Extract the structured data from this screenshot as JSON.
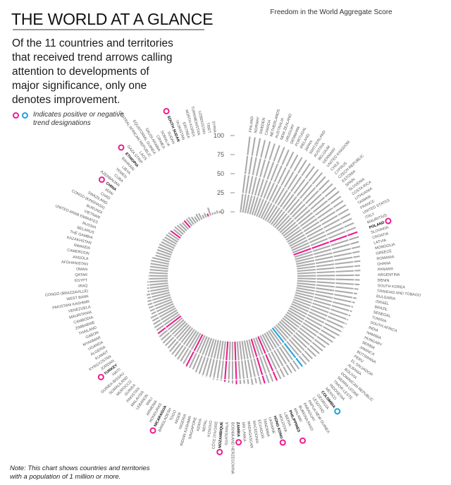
{
  "header": {
    "title": "THE WORLD AT A GLANCE",
    "subtitle": "Of the 11 countries and territories that received trend arrows calling attention to developments of major significance, only one denotes improvement.",
    "legend_text": "Indicates positive or negative trend designations",
    "note": "Note: This chart shows countries and territories with a population of 1 million or more."
  },
  "colors": {
    "bar": "#ababab",
    "negative": "#ec1c8c",
    "positive": "#1ba4e0",
    "gridline": "#ffffff"
  },
  "chart_data": {
    "type": "bar",
    "layout": "radial",
    "title": "THE WORLD AT A GLANCE",
    "ylabel": "Freedom in the World Aggregate Score",
    "ylim": [
      0,
      100
    ],
    "yticks": [
      "0",
      "25",
      "50",
      "75",
      "100"
    ],
    "grid": true,
    "legend": [
      {
        "label": "Indicates positive or negative trend designations",
        "markers": [
          "negative",
          "positive"
        ]
      }
    ],
    "series": [
      {
        "name": "Aggregate Score",
        "categories": [
          {
            "name": "FINLAND",
            "value": 100
          },
          {
            "name": "NORWAY",
            "value": 100
          },
          {
            "name": "SWEDEN",
            "value": 100
          },
          {
            "name": "CANADA",
            "value": 99
          },
          {
            "name": "NETHERLANDS",
            "value": 99
          },
          {
            "name": "AUSTRALIA",
            "value": 98
          },
          {
            "name": "NEW ZEALAND",
            "value": 98
          },
          {
            "name": "URUGUAY",
            "value": 98
          },
          {
            "name": "DENMARK",
            "value": 97
          },
          {
            "name": "PORTUGAL",
            "value": 97
          },
          {
            "name": "IRELAND",
            "value": 96
          },
          {
            "name": "JAPAN",
            "value": 96
          },
          {
            "name": "SWITZERLAND",
            "value": 96
          },
          {
            "name": "AUSTRIA",
            "value": 95
          },
          {
            "name": "BELGIUM",
            "value": 95
          },
          {
            "name": "GERMANY",
            "value": 95
          },
          {
            "name": "UNITED KINGDOM",
            "value": 95
          },
          {
            "name": "CHILE",
            "value": 94
          },
          {
            "name": "CYPRUS",
            "value": 94
          },
          {
            "name": "CZECH REPUBLIC",
            "value": 94
          },
          {
            "name": "ESTONIA",
            "value": 94
          },
          {
            "name": "SPAIN",
            "value": 94
          },
          {
            "name": "SLOVENIA",
            "value": 92
          },
          {
            "name": "COSTA RICA",
            "value": 91
          },
          {
            "name": "LITHUANIA",
            "value": 91
          },
          {
            "name": "TAIWAN",
            "value": 91
          },
          {
            "name": "FRANCE",
            "value": 90
          },
          {
            "name": "UNITED STATES",
            "value": 89
          },
          {
            "name": "ITALY",
            "value": 89
          },
          {
            "name": "MAURITIUS",
            "value": 89
          },
          {
            "name": "POLAND",
            "value": 89,
            "trend": "negative"
          },
          {
            "name": "SLOVAKIA",
            "value": 89
          },
          {
            "name": "CROATIA",
            "value": 87
          },
          {
            "name": "LATVIA",
            "value": 87
          },
          {
            "name": "MONGOLIA",
            "value": 85
          },
          {
            "name": "GREECE",
            "value": 84
          },
          {
            "name": "ROMANIA",
            "value": 84
          },
          {
            "name": "GHANA",
            "value": 83
          },
          {
            "name": "PANAMA",
            "value": 83
          },
          {
            "name": "ARGENTINA",
            "value": 82
          },
          {
            "name": "BENIN",
            "value": 82
          },
          {
            "name": "SOUTH KOREA",
            "value": 82
          },
          {
            "name": "TRINIDAD AND TOBAGO",
            "value": 81
          },
          {
            "name": "BULGARIA",
            "value": 80
          },
          {
            "name": "ISRAEL",
            "value": 80
          },
          {
            "name": "BRAZIL",
            "value": 79
          },
          {
            "name": "SENEGAL",
            "value": 78
          },
          {
            "name": "TUNISIA",
            "value": 78
          },
          {
            "name": "SOUTH AFRICA",
            "value": 78
          },
          {
            "name": "INDIA",
            "value": 77
          },
          {
            "name": "NAMIBIA",
            "value": 77
          },
          {
            "name": "HUNGARY",
            "value": 76
          },
          {
            "name": "SERBIA",
            "value": 76
          },
          {
            "name": "JAMAICA",
            "value": 76
          },
          {
            "name": "BOTSWANA",
            "value": 72
          },
          {
            "name": "PERU",
            "value": 72
          },
          {
            "name": "EL SALVADOR",
            "value": 70
          },
          {
            "name": "ALBANIA",
            "value": 68
          },
          {
            "name": "BOLIVIA",
            "value": 68
          },
          {
            "name": "DOMINICAN REPUBLIC",
            "value": 67
          },
          {
            "name": "SIERRA LEONE",
            "value": 66
          },
          {
            "name": "TIMOR-LESTE",
            "value": 65
          },
          {
            "name": "INDONESIA",
            "value": 65
          },
          {
            "name": "MEXICO",
            "value": 65
          },
          {
            "name": "COLOMBIA",
            "value": 64,
            "trend": "positive"
          },
          {
            "name": "GEORGIA",
            "value": 64
          },
          {
            "name": "LESOTHO",
            "value": 64
          },
          {
            "name": "PAPUA NEW GUINEA",
            "value": 63
          },
          {
            "name": "PARAGUAY",
            "value": 63
          },
          {
            "name": "BURKINA FASO",
            "value": 63
          },
          {
            "name": "MALAWI",
            "value": 63
          },
          {
            "name": "PHILIPPINES",
            "value": 63,
            "trend": "negative"
          },
          {
            "name": "LIBERIA",
            "value": 62
          },
          {
            "name": "MOLDOVA",
            "value": 62
          },
          {
            "name": "HONG KONG",
            "value": 61,
            "trend": "negative"
          },
          {
            "name": "UKRAINE",
            "value": 61
          },
          {
            "name": "TANZANIA",
            "value": 58
          },
          {
            "name": "ECUADOR",
            "value": 59
          },
          {
            "name": "MACEDONIA",
            "value": 57
          },
          {
            "name": "MADAGASCAR",
            "value": 56
          },
          {
            "name": "SRI LANKA",
            "value": 56
          },
          {
            "name": "ZAMBIA",
            "value": 56,
            "trend": "negative"
          },
          {
            "name": "BOSNIA AND HERZEGOVINA",
            "value": 55
          },
          {
            "name": "GUATEMALA",
            "value": 54
          },
          {
            "name": "MOZAMBIQUE",
            "value": 53,
            "trend": "negative"
          },
          {
            "name": "CÔTE D'IVOIRE",
            "value": 52
          },
          {
            "name": "KOSOVO",
            "value": 52
          },
          {
            "name": "NEPAL",
            "value": 52
          },
          {
            "name": "KENYA",
            "value": 51
          },
          {
            "name": "SINGAPORE",
            "value": 51
          },
          {
            "name": "INDIAN KASHMIR",
            "value": 51
          },
          {
            "name": "NIGERIA",
            "value": 50
          },
          {
            "name": "NIGER",
            "value": 49
          },
          {
            "name": "TOGO",
            "value": 47
          },
          {
            "name": "BANGLADESH",
            "value": 47
          },
          {
            "name": "NICARAGUA",
            "value": 47,
            "trend": "negative"
          },
          {
            "name": "HONDURAS",
            "value": 46
          },
          {
            "name": "ARMENIA",
            "value": 45
          },
          {
            "name": "MALI",
            "value": 45
          },
          {
            "name": "LEBANON",
            "value": 44
          },
          {
            "name": "MALAYSIA",
            "value": 44
          },
          {
            "name": "PAKISTAN",
            "value": 43
          },
          {
            "name": "GUINEA",
            "value": 41
          },
          {
            "name": "MOROCCO",
            "value": 41
          },
          {
            "name": "SOMALILAND",
            "value": 41
          },
          {
            "name": "GUINEA-BISSAU",
            "value": 40
          },
          {
            "name": "HAITI",
            "value": 39
          },
          {
            "name": "TURKEY",
            "value": 38,
            "trend": "negative"
          },
          {
            "name": "JORDAN",
            "value": 37
          },
          {
            "name": "KYRGYZSTAN",
            "value": 37
          },
          {
            "name": "KUWAIT",
            "value": 36
          },
          {
            "name": "ALGERIA",
            "value": 35
          },
          {
            "name": "UGANDA",
            "value": 35
          },
          {
            "name": "MYANMAR",
            "value": 32
          },
          {
            "name": "GABON",
            "value": 32
          },
          {
            "name": "THAILAND",
            "value": 32
          },
          {
            "name": "ZIMBABWE",
            "value": 32
          },
          {
            "name": "CAMBODIA",
            "value": 31
          },
          {
            "name": "MAURITANIA",
            "value": 30
          },
          {
            "name": "VENEZUELA",
            "value": 30
          },
          {
            "name": "PAKISTANI KASHMIR",
            "value": 28
          },
          {
            "name": "WEST BANK",
            "value": 28
          },
          {
            "name": "CONGO (BRAZZAVILLE)",
            "value": 27
          },
          {
            "name": "IRAQ",
            "value": 27
          },
          {
            "name": "EGYPT",
            "value": 26
          },
          {
            "name": "QATAR",
            "value": 26
          },
          {
            "name": "OMAN",
            "value": 25
          },
          {
            "name": "AFGHANISTAN",
            "value": 24
          },
          {
            "name": "ANGOLA",
            "value": 24
          },
          {
            "name": "CAMEROON",
            "value": 24
          },
          {
            "name": "RWANDA",
            "value": 24
          },
          {
            "name": "KAZAKHSTAN",
            "value": 23
          },
          {
            "name": "THE GAMBIA",
            "value": 20
          },
          {
            "name": "BELARUS",
            "value": 20
          },
          {
            "name": "RUSSIA",
            "value": 20
          },
          {
            "name": "UNITED ARAB EMIRATES",
            "value": 20
          },
          {
            "name": "VIETNAM",
            "value": 20
          },
          {
            "name": "BURUNDI",
            "value": 19
          },
          {
            "name": "CONGO (KINSHASA)",
            "value": 19
          },
          {
            "name": "SWAZILAND",
            "value": 18
          },
          {
            "name": "CHAD",
            "value": 18
          },
          {
            "name": "IRAN",
            "value": 17
          },
          {
            "name": "CHINA",
            "value": 16,
            "trend": "negative"
          },
          {
            "name": "AZERBAIJAN",
            "value": 14
          },
          {
            "name": "CUBA",
            "value": 15
          },
          {
            "name": "YEMEN",
            "value": 14
          },
          {
            "name": "LIBYA",
            "value": 13
          },
          {
            "name": "BAHRAIN",
            "value": 12
          },
          {
            "name": "ETHIOPIA",
            "value": 12,
            "trend": "negative"
          },
          {
            "name": "GAZA STRIP",
            "value": 12
          },
          {
            "name": "LAOS",
            "value": 12
          },
          {
            "name": "CENTRAL AFRICAN REPUBLIC",
            "value": 10
          },
          {
            "name": "EQUATORIAL GUINEA",
            "value": 8
          },
          {
            "name": "SAUDI ARABIA",
            "value": 10
          },
          {
            "name": "CRIMEA",
            "value": 9
          },
          {
            "name": "SOMALIA",
            "value": 5
          },
          {
            "name": "SUDAN",
            "value": 6
          },
          {
            "name": "SOUTH SUDAN",
            "value": 4,
            "trend": "negative"
          },
          {
            "name": "TAJIKISTAN",
            "value": 11
          },
          {
            "name": "ERITREA",
            "value": 3
          },
          {
            "name": "NORTH KOREA",
            "value": 3
          },
          {
            "name": "TURKMENISTAN",
            "value": 4
          },
          {
            "name": "UZBEKISTAN",
            "value": 3
          },
          {
            "name": "TIBET",
            "value": 1
          },
          {
            "name": "SYRIA",
            "value": -1
          }
        ]
      }
    ]
  }
}
